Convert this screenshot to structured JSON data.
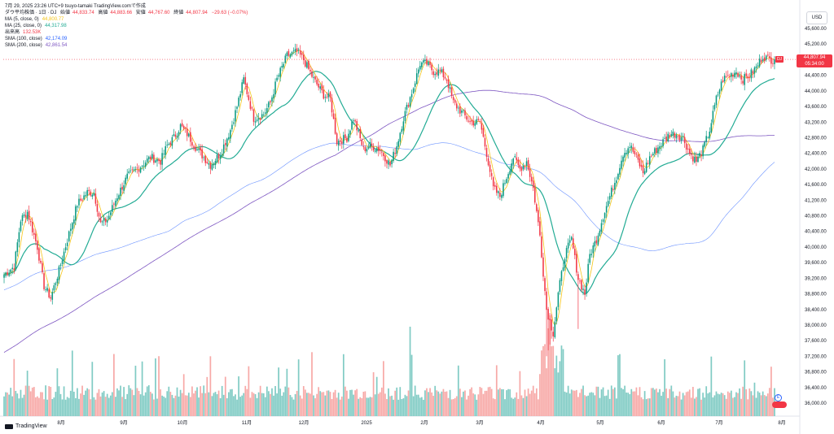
{
  "header": {
    "timestamp": "7月 29, 2025 23:26 UTC+9",
    "author": "tsuyo-tamaki",
    "platform": "TradingView.com",
    "suffix": "で作成",
    "symbol_line": "ダウ平均株価 · 1日 · DJ",
    "open_label": "始値",
    "open": "44,833.74",
    "high_label": "高値",
    "high": "44,883.66",
    "low_label": "安値",
    "low": "44,767.60",
    "close_label": "終値",
    "close": "44,807.94",
    "change": "−29.63 (−0.07%)"
  },
  "indicators": [
    {
      "label": "MA (5, close, 0)",
      "value": "44,800.77",
      "color": "#f5c518"
    },
    {
      "label": "MA (25, close, 0)",
      "value": "44,317.98",
      "color": "#22ab94"
    },
    {
      "label": "出来高",
      "value": "132.53K",
      "color": "#f23645"
    },
    {
      "label": "SMA (100, close)",
      "value": "42,174.09",
      "color": "#2962ff"
    },
    {
      "label": "SMA (200, close)",
      "value": "42,861.54",
      "color": "#7e57c2"
    }
  ],
  "currency_button": "USD",
  "last_price": {
    "symbol": "DJI",
    "price": "44,807.94",
    "countdown": "05:34:00"
  },
  "logo_text": "TradingView",
  "colors": {
    "up": "#089981",
    "down": "#f23645",
    "ma5": "#f5c518",
    "ma25": "#22ab94",
    "sma100": "#2962ff",
    "sma200": "#7e57c2",
    "vol_up": "#80cbc4",
    "vol_down": "#f7a9a7"
  },
  "chart_data": {
    "type": "candlestick",
    "title": "ダウ平均株価 · 1日 · DJ",
    "ylabel": "USD",
    "ylim": [
      35800,
      46000
    ],
    "grid": false,
    "y_ticks": [
      "45,600.00",
      "45,200.00",
      "44,800.00",
      "44,400.00",
      "44,000.00",
      "43,600.00",
      "43,200.00",
      "42,800.00",
      "42,400.00",
      "42,000.00",
      "41,600.00",
      "41,200.00",
      "40,800.00",
      "40,400.00",
      "40,000.00",
      "39,600.00",
      "39,200.00",
      "38,800.00",
      "38,400.00",
      "38,000.00",
      "37,600.00",
      "37,200.00",
      "36,800.00",
      "36,400.00",
      "36,000.00"
    ],
    "x_ticks": [
      "8月",
      "9月",
      "10月",
      "11月",
      "12月",
      "2025",
      "2月",
      "3月",
      "4月",
      "5月",
      "6月",
      "7月",
      "8月"
    ],
    "close_anchors": [
      [
        0,
        39300
      ],
      [
        6,
        39500
      ],
      [
        10,
        40700
      ],
      [
        14,
        40900
      ],
      [
        20,
        40000
      ],
      [
        24,
        39000
      ],
      [
        28,
        38700
      ],
      [
        33,
        39400
      ],
      [
        40,
        40500
      ],
      [
        44,
        41100
      ],
      [
        50,
        41400
      ],
      [
        54,
        41400
      ],
      [
        58,
        40600
      ],
      [
        62,
        40700
      ],
      [
        68,
        41300
      ],
      [
        74,
        41800
      ],
      [
        80,
        42000
      ],
      [
        88,
        42300
      ],
      [
        94,
        42200
      ],
      [
        98,
        42600
      ],
      [
        102,
        42800
      ],
      [
        106,
        43100
      ],
      [
        110,
        42900
      ],
      [
        116,
        42500
      ],
      [
        124,
        42100
      ],
      [
        130,
        42400
      ],
      [
        136,
        43000
      ],
      [
        140,
        43600
      ],
      [
        144,
        44300
      ],
      [
        150,
        43300
      ],
      [
        156,
        43400
      ],
      [
        160,
        43700
      ],
      [
        164,
        44300
      ],
      [
        170,
        44900
      ],
      [
        176,
        45000
      ],
      [
        180,
        44800
      ],
      [
        186,
        44300
      ],
      [
        192,
        43900
      ],
      [
        196,
        43800
      ],
      [
        200,
        42700
      ],
      [
        206,
        42800
      ],
      [
        210,
        43300
      ],
      [
        216,
        42500
      ],
      [
        220,
        42600
      ],
      [
        226,
        42500
      ],
      [
        232,
        42100
      ],
      [
        236,
        42600
      ],
      [
        240,
        43300
      ],
      [
        246,
        44100
      ],
      [
        250,
        44700
      ],
      [
        254,
        44700
      ],
      [
        258,
        44500
      ],
      [
        262,
        44500
      ],
      [
        266,
        44300
      ],
      [
        270,
        43700
      ],
      [
        274,
        43500
      ],
      [
        280,
        43200
      ],
      [
        286,
        43200
      ],
      [
        290,
        42400
      ],
      [
        294,
        41500
      ],
      [
        298,
        41300
      ],
      [
        302,
        41800
      ],
      [
        306,
        42300
      ],
      [
        310,
        42000
      ],
      [
        314,
        42200
      ],
      [
        318,
        41500
      ],
      [
        322,
        40300
      ],
      [
        326,
        38400
      ],
      [
        330,
        37800
      ],
      [
        333,
        38800
      ],
      [
        337,
        39800
      ],
      [
        341,
        40200
      ],
      [
        345,
        39200
      ],
      [
        349,
        38800
      ],
      [
        352,
        39800
      ],
      [
        356,
        40200
      ],
      [
        360,
        40800
      ],
      [
        364,
        41300
      ],
      [
        368,
        41800
      ],
      [
        372,
        42400
      ],
      [
        376,
        42600
      ],
      [
        380,
        42300
      ],
      [
        384,
        41900
      ],
      [
        388,
        42300
      ],
      [
        392,
        42500
      ],
      [
        396,
        42700
      ],
      [
        400,
        42900
      ],
      [
        404,
        42900
      ],
      [
        408,
        42800
      ],
      [
        412,
        42400
      ],
      [
        416,
        42200
      ],
      [
        420,
        42500
      ],
      [
        424,
        43000
      ],
      [
        428,
        43800
      ],
      [
        432,
        44300
      ],
      [
        436,
        44400
      ],
      [
        440,
        44500
      ],
      [
        444,
        44300
      ],
      [
        448,
        44400
      ],
      [
        452,
        44600
      ],
      [
        456,
        44900
      ],
      [
        460,
        44800
      ],
      [
        463,
        44808
      ]
    ],
    "ma5_last": 44800.77,
    "ma25_last": 44317.98,
    "sma100_last": 42174.09,
    "sma200_last": 42861.54,
    "volume_last": "132.53K"
  }
}
